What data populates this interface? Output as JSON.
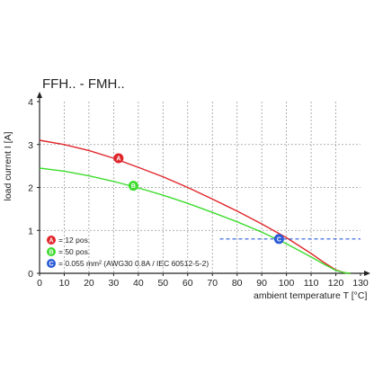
{
  "chart_data": {
    "type": "line",
    "title": "FFH.. - FMH..",
    "xlabel": "ambient temperature T [°C]",
    "ylabel": "load current I [A]",
    "xlim": [
      0,
      130
    ],
    "ylim": [
      0,
      4
    ],
    "xticks": [
      "0",
      "10",
      "20",
      "30",
      "40",
      "50",
      "60",
      "70",
      "80",
      "90",
      "100",
      "110",
      "120",
      "130"
    ],
    "yticks": [
      "0",
      "1",
      "2",
      "3",
      "4"
    ],
    "grid": true,
    "legend_position": "bottom-left",
    "series": [
      {
        "marker": "A",
        "label": "= 12 pos.",
        "color": "#e0262b",
        "x": [
          0,
          10,
          20,
          30,
          40,
          50,
          60,
          70,
          80,
          90,
          100,
          110,
          115,
          120,
          123,
          125,
          126
        ],
        "y": [
          3.1,
          3.0,
          2.86,
          2.68,
          2.47,
          2.25,
          2.0,
          1.73,
          1.45,
          1.15,
          0.83,
          0.46,
          0.26,
          0.08,
          0.02,
          0.0,
          0.0
        ]
      },
      {
        "marker": "B",
        "label": "= 50 pos.",
        "color": "#3ddc2e",
        "x": [
          0,
          10,
          20,
          30,
          40,
          50,
          60,
          70,
          80,
          90,
          100,
          110,
          115,
          120,
          123,
          125,
          126
        ],
        "y": [
          2.45,
          2.38,
          2.27,
          2.14,
          1.99,
          1.82,
          1.63,
          1.42,
          1.2,
          0.96,
          0.69,
          0.38,
          0.22,
          0.07,
          0.02,
          0.0,
          0.0
        ]
      },
      {
        "marker": "C",
        "label": "= 0.055 mm² (AWG30 0.8A / IEC 60512-5-2)",
        "color": "#2a5bd7",
        "dashed": true,
        "x": [
          73,
          130
        ],
        "y": [
          0.8,
          0.8
        ]
      }
    ],
    "markers": [
      {
        "letter": "A",
        "x": 32,
        "y": 2.68,
        "color": "#e0262b"
      },
      {
        "letter": "B",
        "x": 38,
        "y": 2.04,
        "color": "#3ddc2e"
      },
      {
        "letter": "C",
        "x": 97,
        "y": 0.8,
        "color": "#2a5bd7"
      }
    ]
  }
}
